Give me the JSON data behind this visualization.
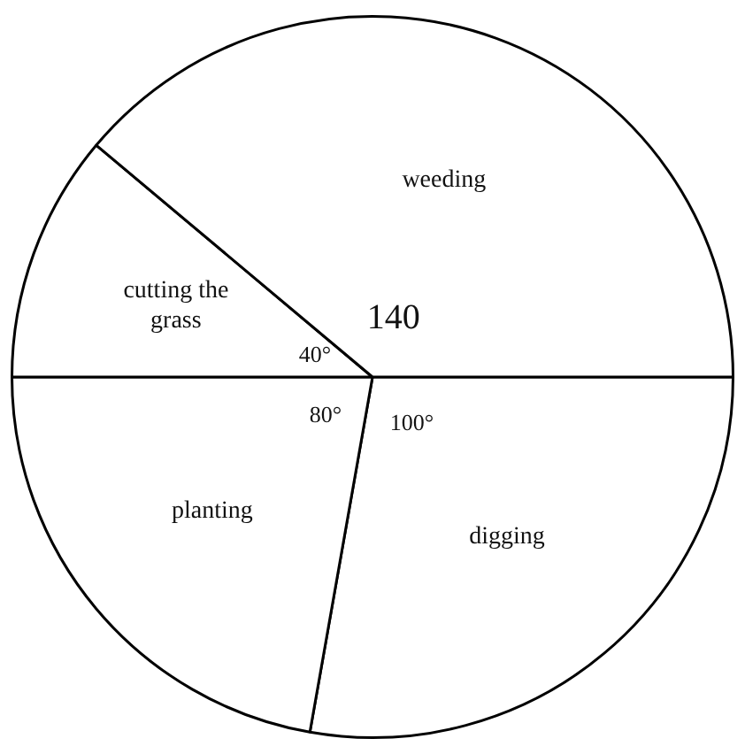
{
  "chart_data": {
    "type": "pie",
    "categories": [
      "digging",
      "planting",
      "cutting the grass",
      "weeding"
    ],
    "values": [
      100,
      80,
      40,
      140
    ],
    "colors": [
      "#ffffff",
      "#ffffff",
      "#ffffff",
      "#ffffff"
    ],
    "value_labels": [
      "100°",
      "80°",
      "40°",
      "140"
    ],
    "legend": false
  }
}
